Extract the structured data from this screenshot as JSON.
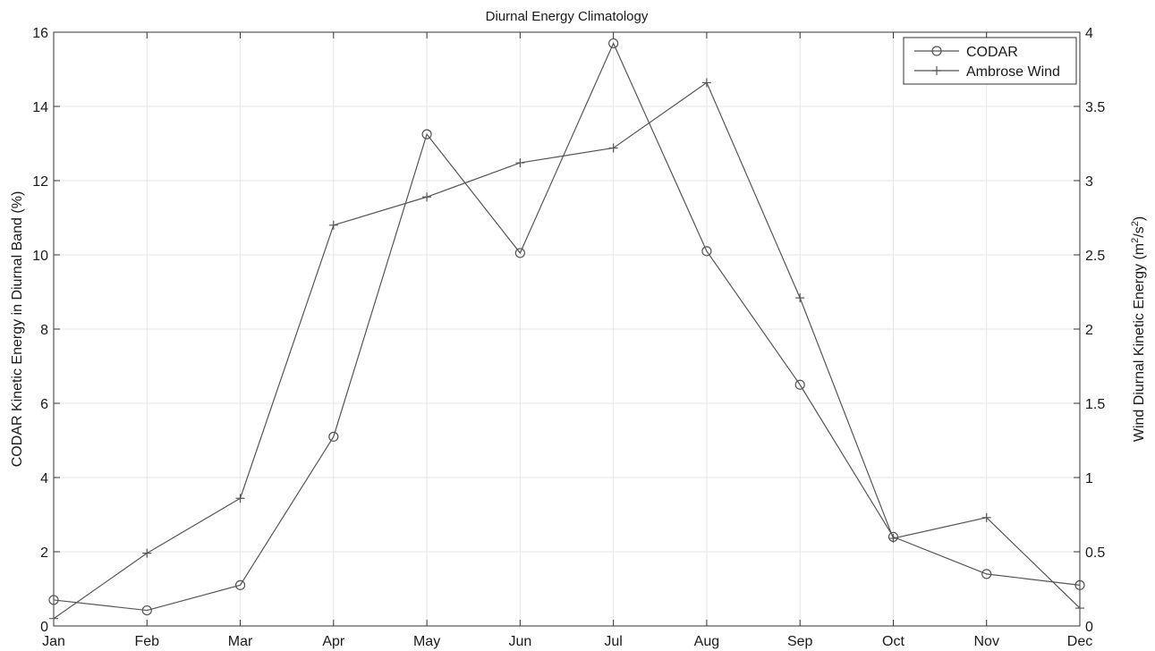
{
  "chart_data": {
    "type": "line",
    "title": "Diurnal Energy Climatology",
    "categories": [
      "Jan",
      "Feb",
      "Mar",
      "Apr",
      "May",
      "Jun",
      "Jul",
      "Aug",
      "Sep",
      "Oct",
      "Nov",
      "Dec"
    ],
    "ylabel": "CODAR Kinetic Energy in Diurnal Band (%)",
    "y2label_base": "Wind Diurnal Kinetic Energy (m",
    "y2label_sup1": "2",
    "y2label_mid": "/s",
    "y2label_sup2": "2",
    "y2label_end": ")",
    "ylim": [
      0,
      16
    ],
    "y2lim": [
      0,
      4
    ],
    "yticks": [
      "0",
      "2",
      "4",
      "6",
      "8",
      "10",
      "12",
      "14",
      "16"
    ],
    "y2ticks": [
      "0",
      "0.5",
      "1",
      "1.5",
      "2",
      "2.5",
      "3",
      "3.5",
      "4"
    ],
    "grid": true,
    "legend_position": "top-right",
    "series": [
      {
        "name": "CODAR",
        "axis": "left",
        "marker": "circle",
        "values": [
          0.7,
          0.42,
          1.1,
          5.1,
          13.25,
          10.05,
          15.7,
          10.1,
          6.5,
          2.4,
          1.4,
          1.1
        ]
      },
      {
        "name": "Ambrose Wind",
        "axis": "right",
        "marker": "plus",
        "values": [
          0.05,
          0.49,
          0.86,
          2.7,
          2.89,
          3.12,
          3.22,
          3.66,
          2.21,
          0.59,
          0.73,
          0.12
        ]
      }
    ],
    "colors": {
      "line": "#555555",
      "grid": "#e6e6e6",
      "axis": "#333333"
    }
  }
}
